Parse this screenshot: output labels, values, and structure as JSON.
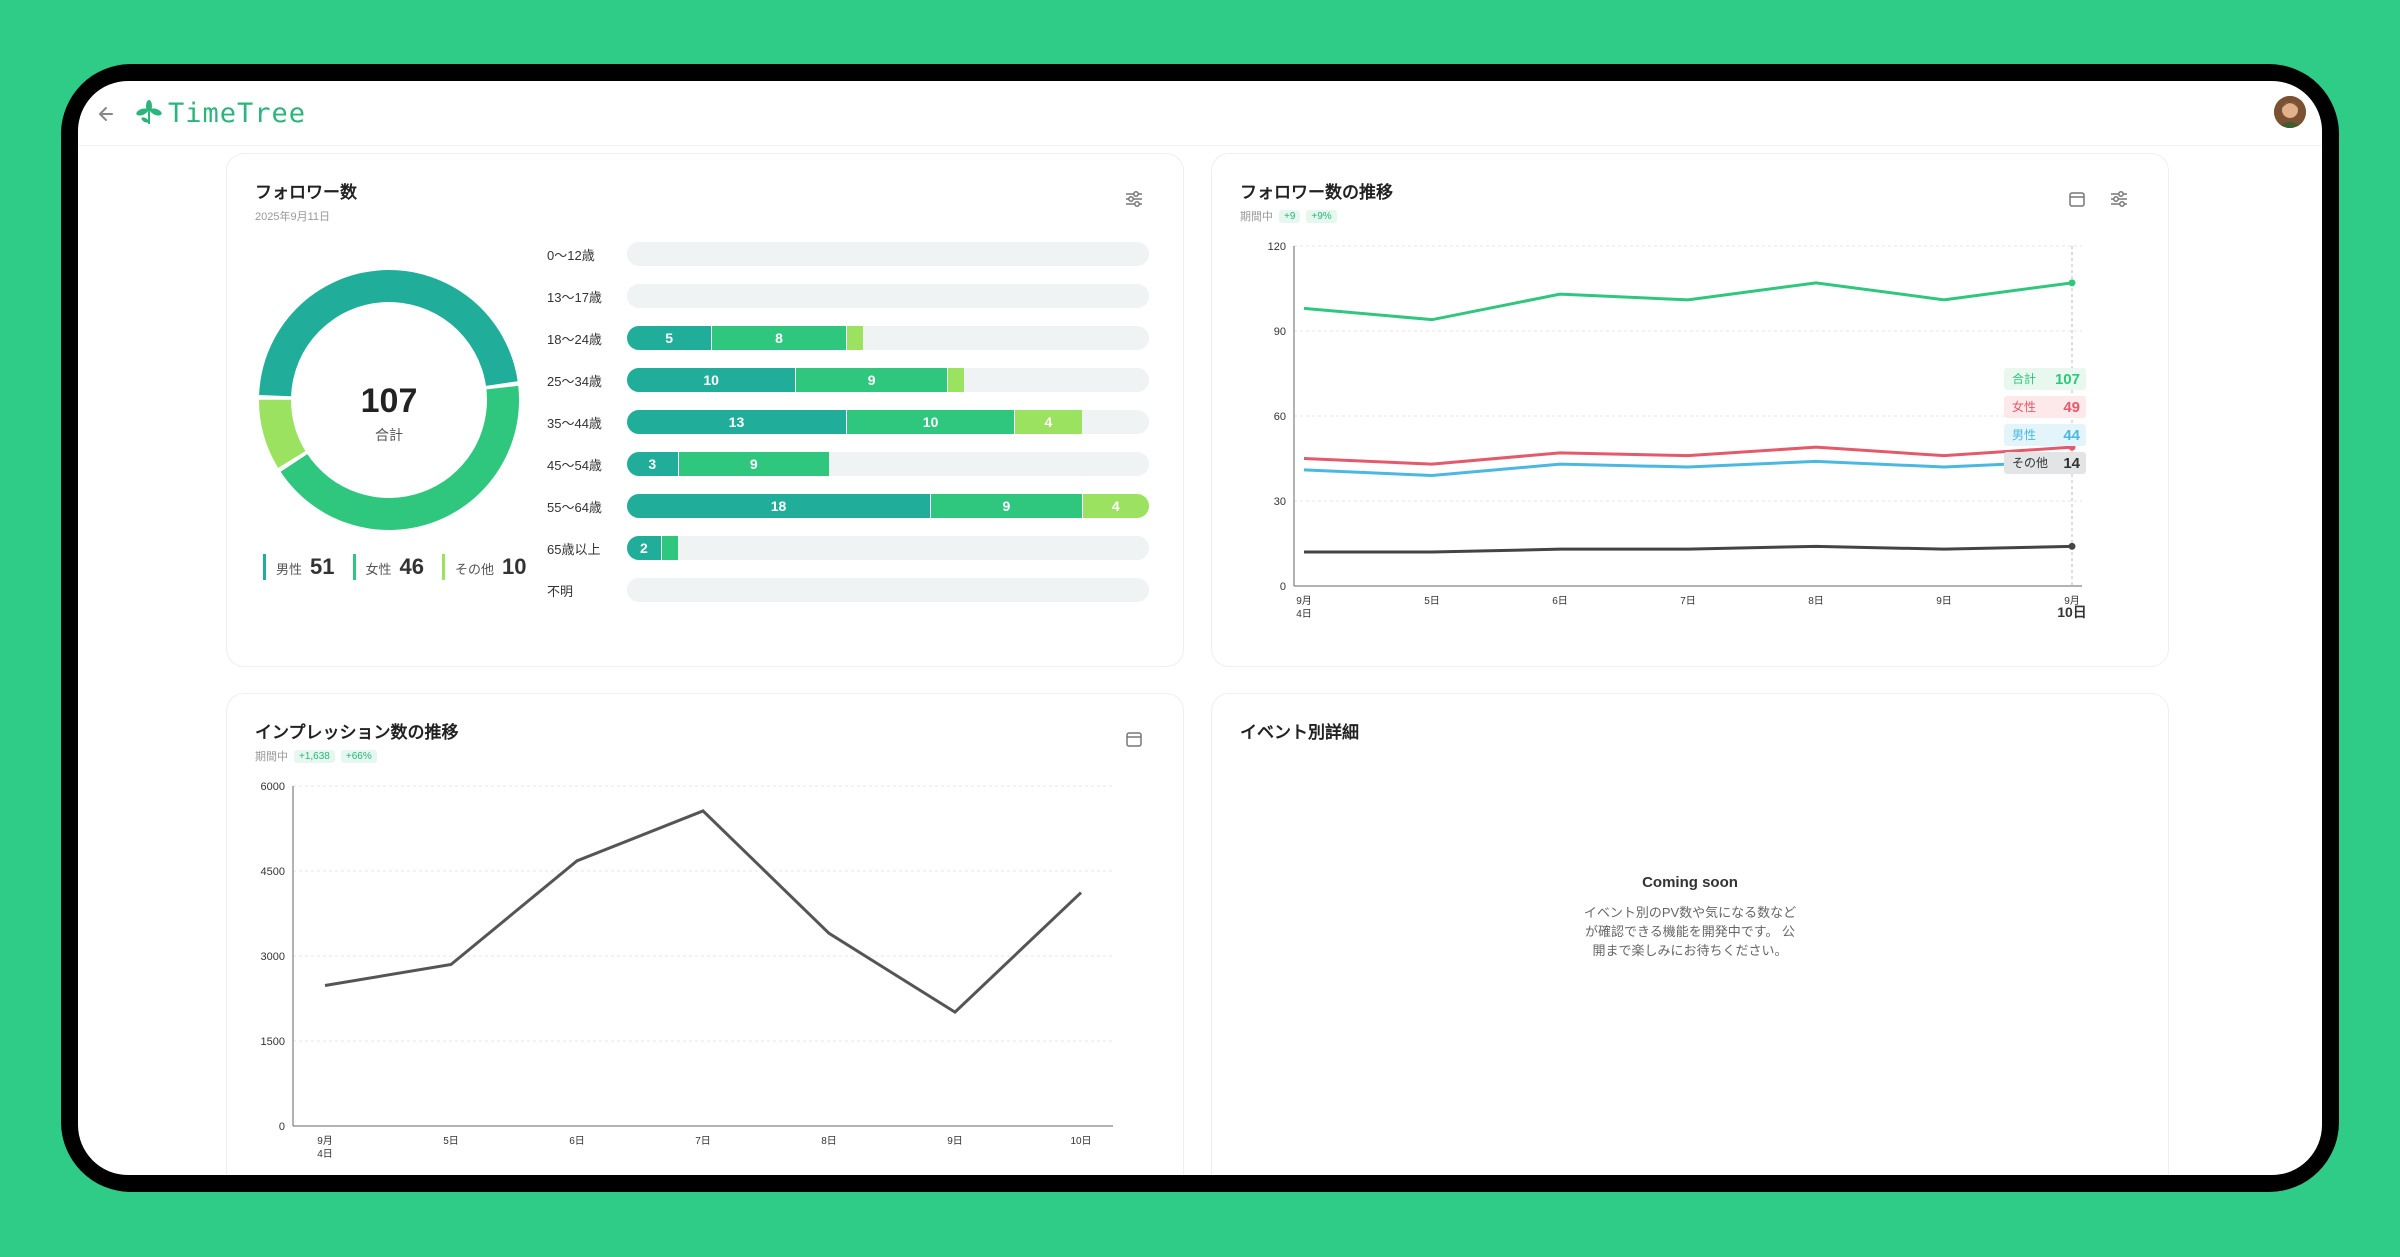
{
  "app": {
    "logo_text": "TimeTree"
  },
  "colors": {
    "male": "#20ae9a",
    "female": "#2ec77d",
    "other": "#9ae25f",
    "male_line": "#4ab8e0",
    "female_line": "#e45a6b",
    "other_line": "#444444",
    "total_line": "#2ec77d"
  },
  "follower_card": {
    "title": "フォロワー数",
    "date": "2025年9月11日",
    "total": "107",
    "total_label": "合計",
    "legend": [
      {
        "label": "男性",
        "value": "51"
      },
      {
        "label": "女性",
        "value": "46"
      },
      {
        "label": "その他",
        "value": "10"
      }
    ],
    "ages": [
      {
        "label": "0〜12歳",
        "male": 0,
        "female": 0,
        "other": 0
      },
      {
        "label": "13〜17歳",
        "male": 0,
        "female": 0,
        "other": 0
      },
      {
        "label": "18〜24歳",
        "male": 5,
        "female": 8,
        "other": 1
      },
      {
        "label": "25〜34歳",
        "male": 10,
        "female": 9,
        "other": 1
      },
      {
        "label": "35〜44歳",
        "male": 13,
        "female": 10,
        "other": 4
      },
      {
        "label": "45〜54歳",
        "male": 3,
        "female": 9,
        "other": 0
      },
      {
        "label": "55〜64歳",
        "male": 18,
        "female": 9,
        "other": 4
      },
      {
        "label": "65歳以上",
        "male": 2,
        "female": 1,
        "other": 0
      },
      {
        "label": "不明",
        "male": 0,
        "female": 0,
        "other": 0
      }
    ]
  },
  "trend_card": {
    "title": "フォロワー数の推移",
    "period_label": "期間中",
    "delta_abs": "+9",
    "delta_pct": "+9%",
    "tooltip": [
      {
        "label": "合計",
        "value": "107"
      },
      {
        "label": "女性",
        "value": "49"
      },
      {
        "label": "男性",
        "value": "44"
      },
      {
        "label": "その他",
        "value": "14"
      }
    ]
  },
  "impression_card": {
    "title": "インプレッション数の推移",
    "period_label": "期間中",
    "delta_abs": "+1,638",
    "delta_pct": "+66%"
  },
  "event_card": {
    "title": "イベント別詳細",
    "coming_title": "Coming soon",
    "coming_lines": [
      "イベント別のPV数や気になる数など",
      "が確認できる機能を開発中です。 公",
      "開まで楽しみにお待ちください。"
    ]
  },
  "chart_data": [
    {
      "type": "pie",
      "categories": [
        "男性",
        "女性",
        "その他"
      ],
      "values": [
        51,
        46,
        10
      ]
    },
    {
      "type": "bar",
      "stacked": true,
      "orientation": "horizontal",
      "categories": [
        "0〜12歳",
        "13〜17歳",
        "18〜24歳",
        "25〜34歳",
        "35〜44歳",
        "45〜54歳",
        "55〜64歳",
        "65歳以上",
        "不明"
      ],
      "series": [
        {
          "name": "男性",
          "values": [
            0,
            0,
            5,
            10,
            13,
            3,
            18,
            2,
            0
          ]
        },
        {
          "name": "女性",
          "values": [
            0,
            0,
            8,
            9,
            10,
            9,
            9,
            1,
            0
          ]
        },
        {
          "name": "その他",
          "values": [
            0,
            0,
            1,
            1,
            4,
            0,
            4,
            0,
            0
          ]
        }
      ]
    },
    {
      "type": "line",
      "x": [
        "9月\n4日",
        "5日",
        "6日",
        "7日",
        "8日",
        "9日",
        "9月\n10日"
      ],
      "y_ticks": [
        "0",
        "30",
        "60",
        "90",
        "120"
      ],
      "ylim": [
        0,
        120
      ],
      "series": [
        {
          "name": "合計",
          "values": [
            98,
            94,
            103,
            101,
            107,
            101,
            107
          ]
        },
        {
          "name": "女性",
          "values": [
            45,
            43,
            47,
            46,
            49,
            46,
            49
          ]
        },
        {
          "name": "男性",
          "values": [
            41,
            39,
            43,
            42,
            44,
            42,
            44
          ]
        },
        {
          "name": "その他",
          "values": [
            12,
            12,
            13,
            13,
            14,
            13,
            14
          ]
        }
      ]
    },
    {
      "type": "line",
      "x": [
        "9月\n4日",
        "5日",
        "6日",
        "7日",
        "8日",
        "9日",
        "10日"
      ],
      "y_ticks": [
        "0",
        "1500",
        "3000",
        "4500",
        "6000"
      ],
      "ylim": [
        0,
        6000
      ],
      "series": [
        {
          "values": [
            2480,
            2850,
            4680,
            5560,
            3400,
            2010,
            4120
          ]
        }
      ]
    }
  ]
}
